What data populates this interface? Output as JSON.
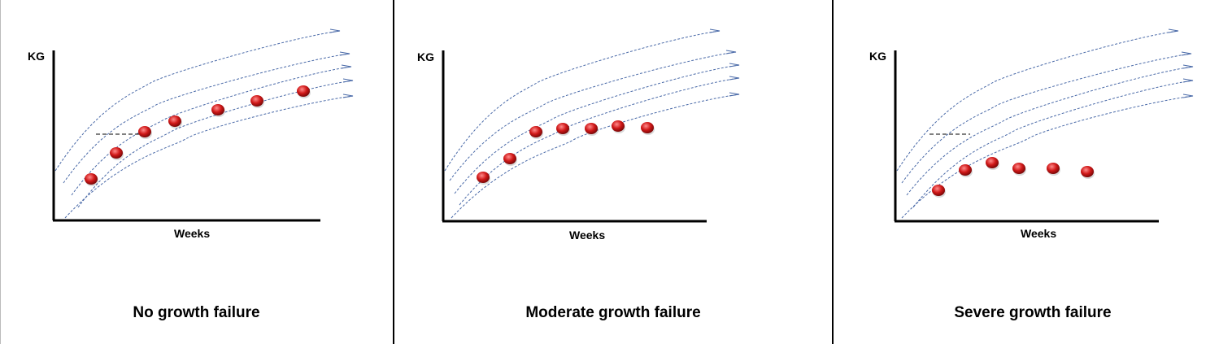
{
  "colors": {
    "curve": "#4a6aa8",
    "dot": "#d01818",
    "dot_highlight": "#ff8c8c",
    "axis": "#000000",
    "guide": "#000000"
  },
  "panels": [
    {
      "y_label": "KG",
      "x_label": "Weeks",
      "caption": "No growth failure"
    },
    {
      "y_label": "KG",
      "x_label": "Weeks",
      "caption": "Moderate growth failure"
    },
    {
      "y_label": "KG",
      "x_label": "Weeks",
      "caption": "Severe growth failure"
    }
  ]
}
